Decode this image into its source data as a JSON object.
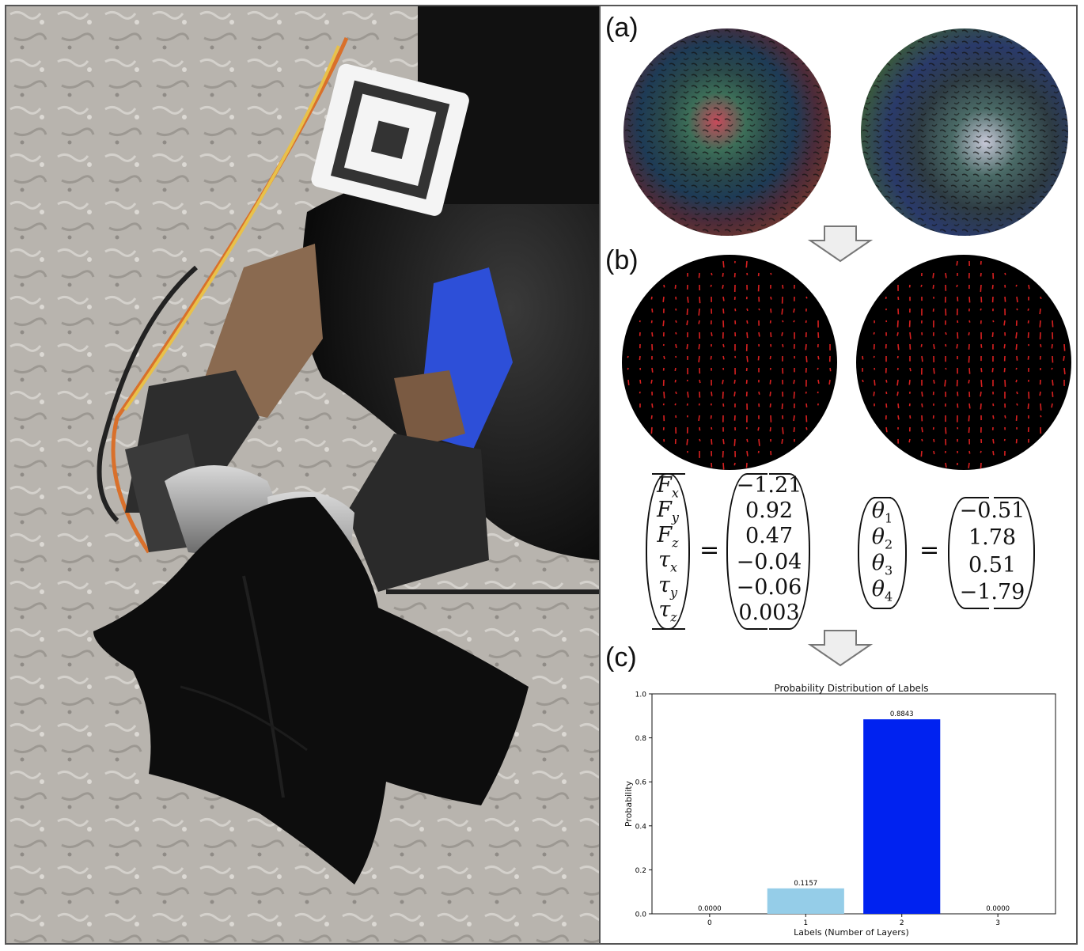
{
  "panels": {
    "a": "(a)",
    "b": "(b)",
    "c": "(c)"
  },
  "force_vector": {
    "symbols": [
      "F",
      "F",
      "F",
      "τ",
      "τ",
      "τ"
    ],
    "subscripts": [
      "x",
      "y",
      "z",
      "x",
      "y",
      "z"
    ],
    "values": [
      "−1.21",
      "0.92",
      "0.47",
      "−0.04",
      "−0.06",
      "0.003"
    ],
    "equals": "="
  },
  "joint_vector": {
    "symbols": [
      "θ",
      "θ",
      "θ",
      "θ"
    ],
    "subscripts": [
      "1",
      "2",
      "3",
      "4"
    ],
    "values": [
      "−0.51",
      "1.78",
      "0.51",
      "−1.79"
    ],
    "equals": "="
  },
  "colors": {
    "bar_light": "#95cde8",
    "bar_dark": "#0022f0",
    "sphere_dark": "#000000",
    "arrow_fill": "#eeeeee",
    "arrow_stroke": "#777777"
  },
  "chart_data": {
    "type": "bar",
    "title": "Probability Distribution of Labels",
    "xlabel": "Labels (Number of Layers)",
    "ylabel": "Probability",
    "categories": [
      "0",
      "1",
      "2",
      "3"
    ],
    "values": [
      0.0,
      0.1157,
      0.8843,
      0.0
    ],
    "value_labels": [
      "0.0000",
      "0.1157",
      "0.8843",
      "0.0000"
    ],
    "bar_colors": [
      "#95cde8",
      "#95cde8",
      "#0022f0",
      "#0022f0"
    ],
    "ylim": [
      0,
      1.0
    ],
    "yticks": [
      "0.0",
      "0.2",
      "0.4",
      "0.6",
      "0.8",
      "1.0"
    ],
    "grid": false
  }
}
